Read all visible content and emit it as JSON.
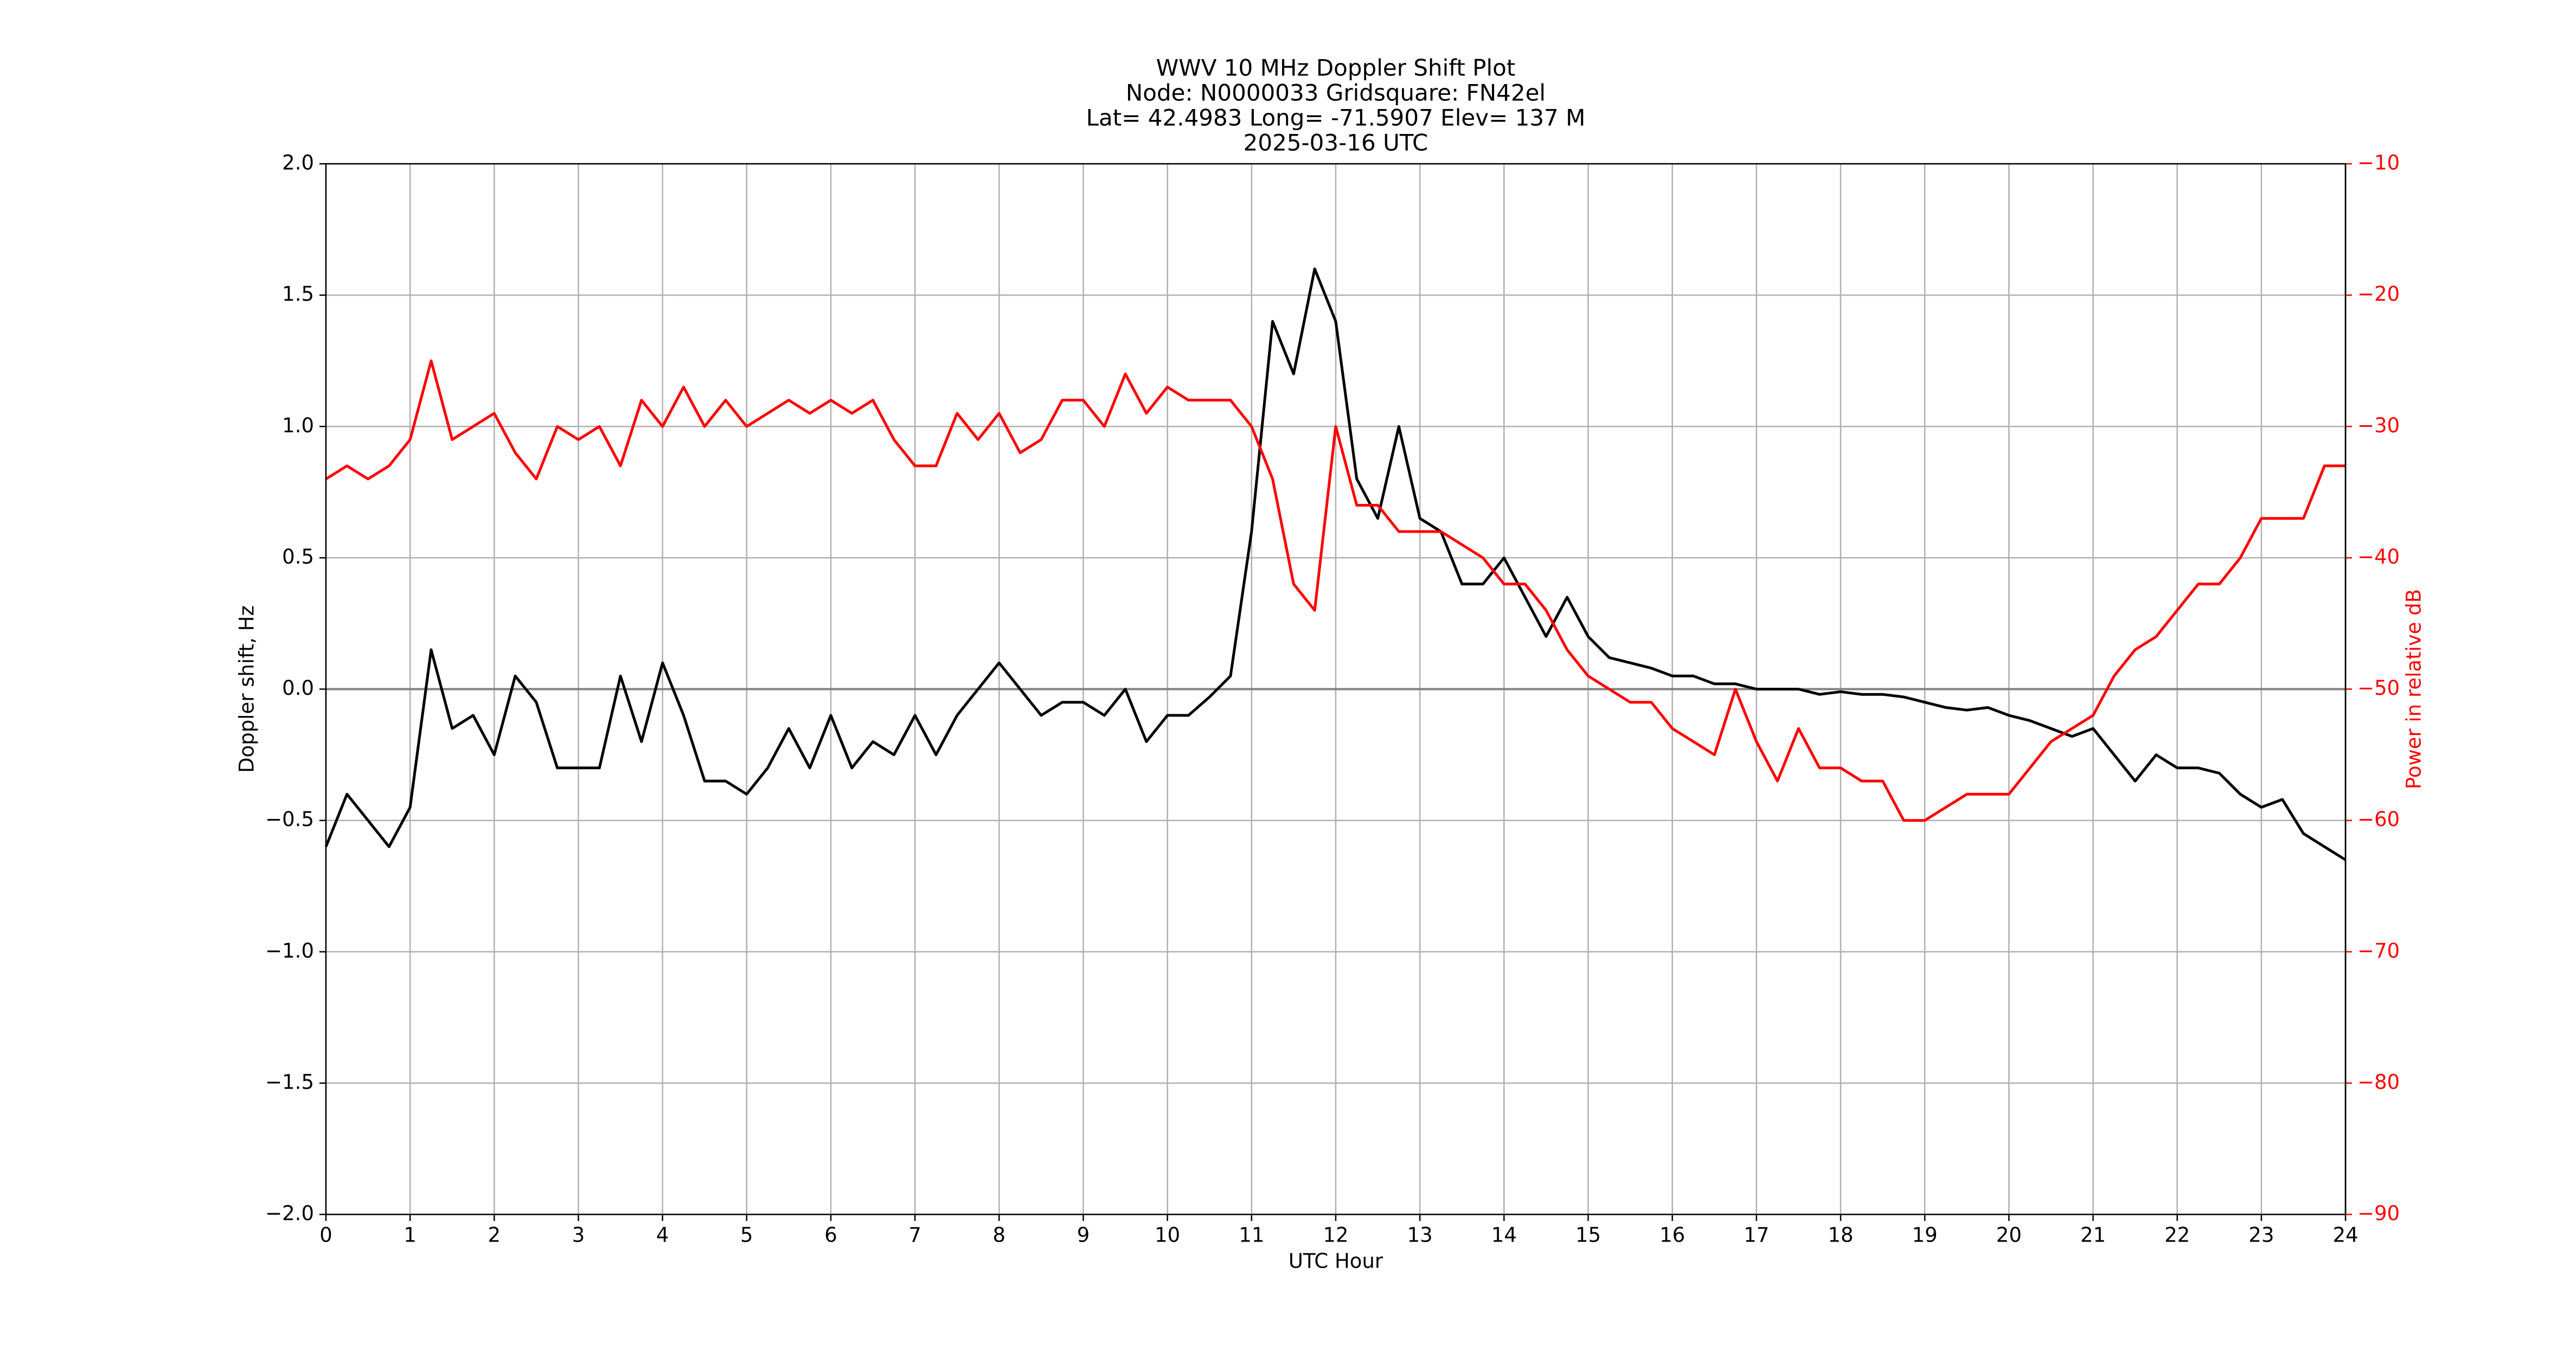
{
  "chart_data": {
    "type": "line",
    "title_lines": [
      "WWV 10 MHz Doppler Shift Plot",
      "Node:  N0000033     Gridsquare:  FN42el",
      "Lat= 42.4983    Long= -71.5907    Elev= 137 M",
      "2025-03-16  UTC"
    ],
    "xlabel": "UTC Hour",
    "ylabel": "Doppler shift, Hz",
    "y2label": "Power in relative dB",
    "x": [
      0,
      0.25,
      0.5,
      0.75,
      1,
      1.25,
      1.5,
      1.75,
      2,
      2.25,
      2.5,
      2.75,
      3,
      3.25,
      3.5,
      3.75,
      4,
      4.25,
      4.5,
      4.75,
      5,
      5.25,
      5.5,
      5.75,
      6,
      6.25,
      6.5,
      6.75,
      7,
      7.25,
      7.5,
      7.75,
      8,
      8.25,
      8.5,
      8.75,
      9,
      9.25,
      9.5,
      9.75,
      10,
      10.25,
      10.5,
      10.75,
      11,
      11.25,
      11.5,
      11.75,
      12,
      12.25,
      12.5,
      12.75,
      13,
      13.25,
      13.5,
      13.75,
      14,
      14.25,
      14.5,
      14.75,
      15,
      15.25,
      15.5,
      15.75,
      16,
      16.25,
      16.5,
      16.75,
      17,
      17.25,
      17.5,
      17.75,
      18,
      18.25,
      18.5,
      18.75,
      19,
      19.25,
      19.5,
      19.75,
      20,
      20.25,
      20.5,
      20.75,
      21,
      21.25,
      21.5,
      21.75,
      22,
      22.25,
      22.5,
      22.75,
      23,
      23.25,
      23.5,
      23.75,
      24
    ],
    "series": [
      {
        "color": "#000000",
        "axis": "y",
        "values": [
          -0.6,
          -0.4,
          -0.5,
          -0.6,
          -0.45,
          0.15,
          -0.15,
          -0.1,
          -0.25,
          0.05,
          -0.05,
          -0.3,
          -0.3,
          -0.3,
          0.05,
          -0.2,
          0.1,
          -0.1,
          -0.35,
          -0.35,
          -0.4,
          -0.3,
          -0.15,
          -0.3,
          -0.1,
          -0.3,
          -0.2,
          -0.25,
          -0.1,
          -0.25,
          -0.1,
          0.0,
          0.1,
          0.0,
          -0.1,
          -0.05,
          -0.05,
          -0.1,
          0.0,
          -0.2,
          -0.1,
          -0.1,
          -0.03,
          0.05,
          0.6,
          1.4,
          1.2,
          1.6,
          1.4,
          0.8,
          0.65,
          1.0,
          0.65,
          0.6,
          0.4,
          0.4,
          0.5,
          0.35,
          0.2,
          0.35,
          0.2,
          0.12,
          0.1,
          0.08,
          0.05,
          0.05,
          0.02,
          0.02,
          0,
          0,
          0,
          -0.02,
          -0.01,
          -0.02,
          -0.02,
          -0.03,
          -0.05,
          -0.07,
          -0.08,
          -0.07,
          -0.1,
          -0.12,
          -0.15,
          -0.18,
          -0.15,
          -0.25,
          -0.35,
          -0.25,
          -0.3,
          -0.3,
          -0.32,
          -0.4,
          -0.45,
          -0.42,
          -0.55,
          -0.6,
          -0.65
        ]
      },
      {
        "color": "#ff0000",
        "axis": "y2",
        "values": [
          -34,
          -33,
          -34,
          -33,
          -31,
          -25,
          -31,
          -30,
          -29,
          -32,
          -34,
          -30,
          -31,
          -30,
          -33,
          -28,
          -30,
          -27,
          -30,
          -28,
          -30,
          -29,
          -28,
          -29,
          -28,
          -29,
          -28,
          -31,
          -33,
          -33,
          -29,
          -31,
          -29,
          -32,
          -31,
          -28,
          -28,
          -30,
          -26,
          -29,
          -27,
          -28,
          -28,
          -28,
          -30,
          -34,
          -42,
          -44,
          -30,
          -36,
          -36,
          -38,
          -38,
          -38,
          -39,
          -40,
          -42,
          -42,
          -44,
          -47,
          -49,
          -50,
          -51,
          -51,
          -53,
          -54,
          -55,
          -50,
          -54,
          -57,
          -53,
          -56,
          -56,
          -57,
          -57,
          -60,
          -60,
          -59,
          -58,
          -58,
          -58,
          -56,
          -54,
          -53,
          -52,
          -49,
          -47,
          -46,
          -44,
          -42,
          -42,
          -40,
          -37,
          -37,
          -37,
          -33,
          -33
        ]
      }
    ],
    "xlim": [
      0,
      24
    ],
    "xticks": [
      0,
      1,
      2,
      3,
      4,
      5,
      6,
      7,
      8,
      9,
      10,
      11,
      12,
      13,
      14,
      15,
      16,
      17,
      18,
      19,
      20,
      21,
      22,
      23,
      24
    ],
    "ylim": [
      -2,
      2
    ],
    "yticks": [
      {
        "value": -2,
        "label": "−2.0"
      },
      {
        "value": -1.5,
        "label": "−1.5"
      },
      {
        "value": -1,
        "label": "−1.0"
      },
      {
        "value": -0.5,
        "label": "−0.5"
      },
      {
        "value": 0,
        "label": "0.0"
      },
      {
        "value": 0.5,
        "label": "0.5"
      },
      {
        "value": 1,
        "label": "1.0"
      },
      {
        "value": 1.5,
        "label": "1.5"
      },
      {
        "value": 2,
        "label": "2.0"
      }
    ],
    "y2lim": [
      -90,
      -10
    ],
    "y2ticks": [
      {
        "value": -90,
        "label": "−90"
      },
      {
        "value": -80,
        "label": "−80"
      },
      {
        "value": -70,
        "label": "−70"
      },
      {
        "value": -60,
        "label": "−60"
      },
      {
        "value": -50,
        "label": "−50"
      },
      {
        "value": -40,
        "label": "−40"
      },
      {
        "value": -30,
        "label": "−30"
      },
      {
        "value": -20,
        "label": "−20"
      },
      {
        "value": -10,
        "label": "−10"
      }
    ],
    "y2color": "#ff0000",
    "grid": true
  }
}
